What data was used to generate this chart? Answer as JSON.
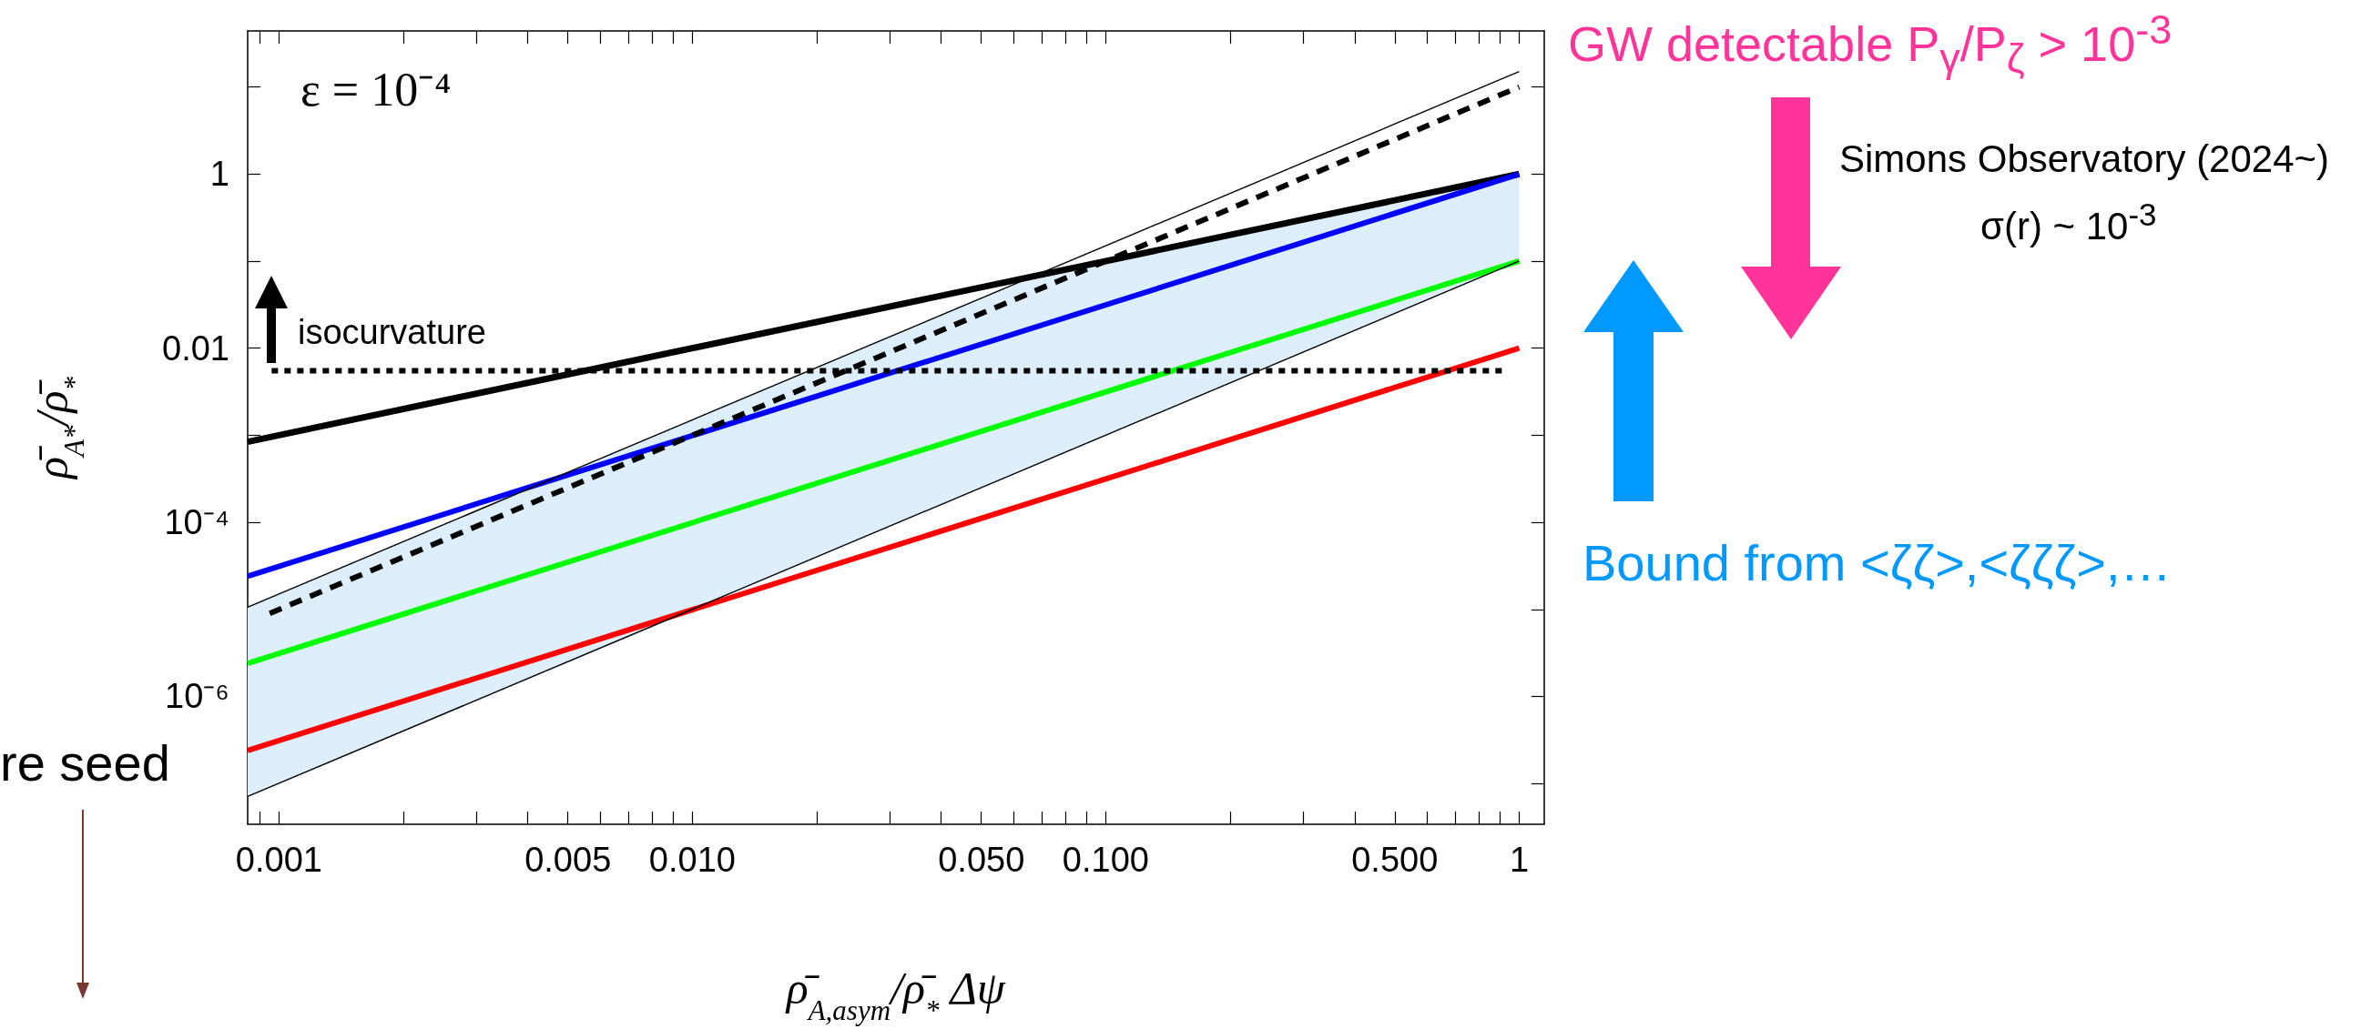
{
  "chart_data": {
    "type": "line",
    "xlabel": "ρ̄$_{A,asym}$/ρ̄$_{*}$ Δψ",
    "ylabel": "ρ̄$_{A*}$/ρ̄$_{*}$",
    "log": "xy",
    "grid": false,
    "marker": "none",
    "line_style": "solid",
    "xlim": [
      0.00084,
      1.15
    ],
    "ylim": [
      3.4e-08,
      44
    ],
    "xticks": [
      {
        "value": 0.0009,
        "label": null
      },
      0.001,
      {
        "value": 0.002,
        "label": null
      },
      {
        "value": 0.003,
        "label": null
      },
      {
        "value": 0.004,
        "label": null
      },
      0.005,
      {
        "value": 0.006,
        "label": null
      },
      {
        "value": 0.007,
        "label": null
      },
      {
        "value": 0.008,
        "label": null
      },
      {
        "value": 0.009,
        "label": null
      },
      {
        "value": 0.01,
        "label": "0.010"
      },
      {
        "value": 0.02,
        "label": null
      },
      {
        "value": 0.03,
        "label": null
      },
      {
        "value": 0.04,
        "label": null
      },
      {
        "value": 0.05,
        "label": "0.050"
      },
      {
        "value": 0.06,
        "label": null
      },
      {
        "value": 0.07,
        "label": null
      },
      {
        "value": 0.08,
        "label": null
      },
      {
        "value": 0.09,
        "label": null
      },
      {
        "value": 0.1,
        "label": "0.100"
      },
      {
        "value": 0.2,
        "label": null
      },
      {
        "value": 0.3,
        "label": null
      },
      {
        "value": 0.4,
        "label": null
      },
      {
        "value": 0.5,
        "label": "0.500"
      },
      {
        "value": 0.6,
        "label": null
      },
      {
        "value": 0.7,
        "label": null
      },
      {
        "value": 0.8,
        "label": null
      },
      {
        "value": 0.9,
        "label": null
      },
      1
    ],
    "yticks": [
      {
        "value": 1e-07,
        "label": null
      },
      {
        "value": 1e-06,
        "label": "10⁻⁶"
      },
      {
        "value": 1e-05,
        "label": null
      },
      {
        "value": 0.0001,
        "label": "10⁻⁴"
      },
      {
        "value": 0.001,
        "label": null
      },
      0.01,
      {
        "value": 0.1,
        "label": null
      },
      1,
      {
        "value": 10,
        "label": null
      }
    ],
    "series": [
      {
        "color": "#000000",
        "x": [
          0.00084,
          1
        ],
        "values": [
          0.00084,
          1
        ]
      },
      {
        "color": "#0000ff",
        "x": [
          0.00084,
          1
        ],
        "values": [
          2.4e-05,
          1
        ]
      },
      {
        "color": "#00ff00",
        "x": [
          0.00084,
          1
        ],
        "values": [
          2.4e-06,
          0.1
        ]
      },
      {
        "color": "#ff0000",
        "x": [
          0.00084,
          1
        ],
        "values": [
          2.4e-07,
          0.01
        ]
      },
      {
        "color": "#000000",
        "line_style": "dashed",
        "x": [
          0.00095,
          1
        ],
        "values": [
          9e-06,
          10
        ]
      },
      {
        "color": "#000000",
        "line_style": "dotted",
        "x": [
          0.00096,
          0.93
        ],
        "values": [
          0.0055,
          0.0055
        ]
      },
      {
        "color": "#000000",
        "x": [
          0.00084,
          1
        ],
        "values": [
          1.06e-05,
          15
        ]
      },
      {
        "color": "#000000",
        "x": [
          0.00084,
          0.066,
          1
        ],
        "values": [
          7.1e-08,
          0.000436,
          0.1
        ],
        "lower": [
          7.1e-08,
          0.000436,
          0.1
        ],
        "upper": [
          1.06e-05,
          0.066,
          1
        ]
      }
    ],
    "annotations": [
      "ε = 10⁻⁴",
      "isocurvature",
      "GW detectable P$_{γ}$/P$_{ζ}$ > 10$^{-3}$",
      "Simons Observatory (2024~)",
      "σ(r) ~ 10$^{-3}$",
      "Bound from <ζζ>,<ζζζ>,…",
      "re seed"
    ]
  }
}
